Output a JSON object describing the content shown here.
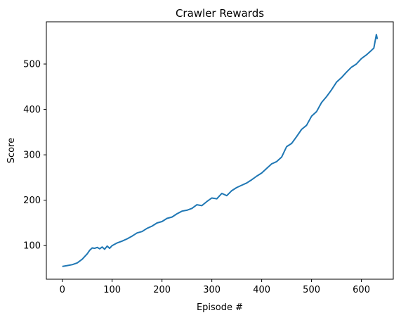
{
  "chart_data": {
    "type": "line",
    "title": "Crawler Rewards",
    "xlabel": "Episode #",
    "ylabel": "Score",
    "xlim": [
      -32,
      664
    ],
    "ylim": [
      26,
      593
    ],
    "xticks": [
      0,
      100,
      200,
      300,
      400,
      500,
      600
    ],
    "yticks": [
      100,
      200,
      300,
      400,
      500
    ],
    "grid": false,
    "legend": "none",
    "series": [
      {
        "color": "#1f77b4",
        "x": [
          0,
          10,
          20,
          30,
          40,
          50,
          55,
          60,
          65,
          70,
          75,
          80,
          85,
          90,
          95,
          100,
          110,
          120,
          130,
          140,
          150,
          160,
          170,
          180,
          190,
          200,
          210,
          220,
          230,
          240,
          250,
          260,
          270,
          280,
          290,
          300,
          310,
          320,
          330,
          340,
          350,
          360,
          370,
          380,
          390,
          400,
          410,
          420,
          430,
          440,
          450,
          460,
          470,
          480,
          490,
          500,
          510,
          520,
          530,
          540,
          550,
          560,
          570,
          580,
          590,
          600,
          610,
          620,
          625,
          630,
          632
        ],
        "y": [
          54,
          56,
          58,
          62,
          70,
          82,
          90,
          95,
          94,
          96,
          93,
          97,
          92,
          99,
          94,
          100,
          106,
          110,
          115,
          121,
          128,
          131,
          138,
          143,
          150,
          153,
          160,
          163,
          170,
          176,
          178,
          182,
          190,
          188,
          197,
          205,
          203,
          215,
          210,
          221,
          228,
          233,
          238,
          245,
          253,
          260,
          270,
          280,
          285,
          295,
          318,
          325,
          340,
          356,
          365,
          385,
          395,
          415,
          428,
          443,
          460,
          470,
          482,
          493,
          500,
          512,
          520,
          530,
          535,
          565,
          555
        ]
      }
    ]
  }
}
